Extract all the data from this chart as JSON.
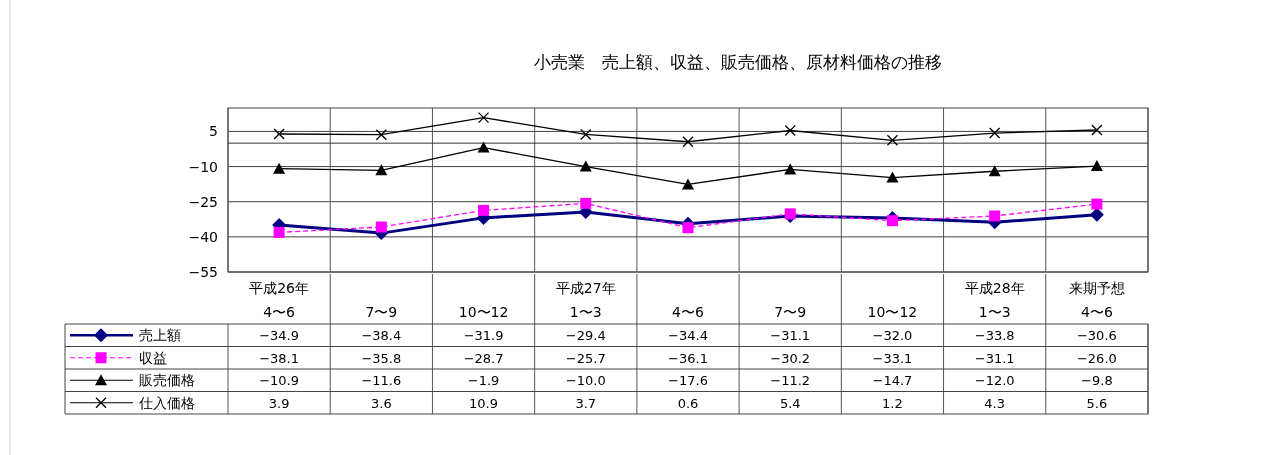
{
  "chart_data": {
    "type": "line",
    "title": "小売業　売上額、収益、販売価格、原材料価格の推移",
    "categories": [
      "平成26年\n4〜6",
      "7〜9",
      "10〜12",
      "平成27年\n1〜3",
      "4〜6",
      "7〜9",
      "10〜12",
      "平成28年\n1〜3",
      "来期予想\n4〜6"
    ],
    "series": [
      {
        "name": "売上額",
        "color": "#000080",
        "marker": "diamond",
        "line_style": "solid",
        "values": [
          -34.9,
          -38.4,
          -31.9,
          -29.4,
          -34.4,
          -31.1,
          -32.0,
          -33.8,
          -30.6
        ],
        "value_labels": [
          "−34.9",
          "−38.4",
          "−31.9",
          "−29.4",
          "−34.4",
          "−31.1",
          "−32.0",
          "−33.8",
          "−30.6"
        ]
      },
      {
        "name": "収益",
        "color": "#ff00ff",
        "marker": "square",
        "line_style": "dashed",
        "values": [
          -38.1,
          -35.8,
          -28.7,
          -25.7,
          -36.1,
          -30.2,
          -33.1,
          -31.1,
          -26.0
        ],
        "value_labels": [
          "−38.1",
          "−35.8",
          "−28.7",
          "−25.7",
          "−36.1",
          "−30.2",
          "−33.1",
          "−31.1",
          "−26.0"
        ]
      },
      {
        "name": "販売価格",
        "color": "#000000",
        "marker": "triangle",
        "line_style": "solid",
        "values": [
          -10.9,
          -11.6,
          -1.9,
          -10.0,
          -17.6,
          -11.2,
          -14.7,
          -12.0,
          -9.8
        ],
        "value_labels": [
          "−10.9",
          "−11.6",
          "−1.9",
          "−10.0",
          "−17.6",
          "−11.2",
          "−14.7",
          "−12.0",
          "−9.8"
        ]
      },
      {
        "name": "仕入価格",
        "color": "#000000",
        "marker": "cross",
        "line_style": "solid",
        "values": [
          3.9,
          3.6,
          10.9,
          3.7,
          0.6,
          5.4,
          1.2,
          4.3,
          5.6
        ],
        "value_labels": [
          "3.9",
          "3.6",
          "10.9",
          "3.7",
          "0.6",
          "5.4",
          "1.2",
          "4.3",
          "5.6"
        ]
      }
    ],
    "ylim": [
      -55,
      15
    ],
    "yticks": [
      5,
      -10,
      -25,
      -40,
      -55
    ],
    "ref_lines": [
      {
        "axis": "y",
        "value": 0,
        "label": null
      }
    ],
    "grid": true,
    "legend": "bottom left"
  }
}
